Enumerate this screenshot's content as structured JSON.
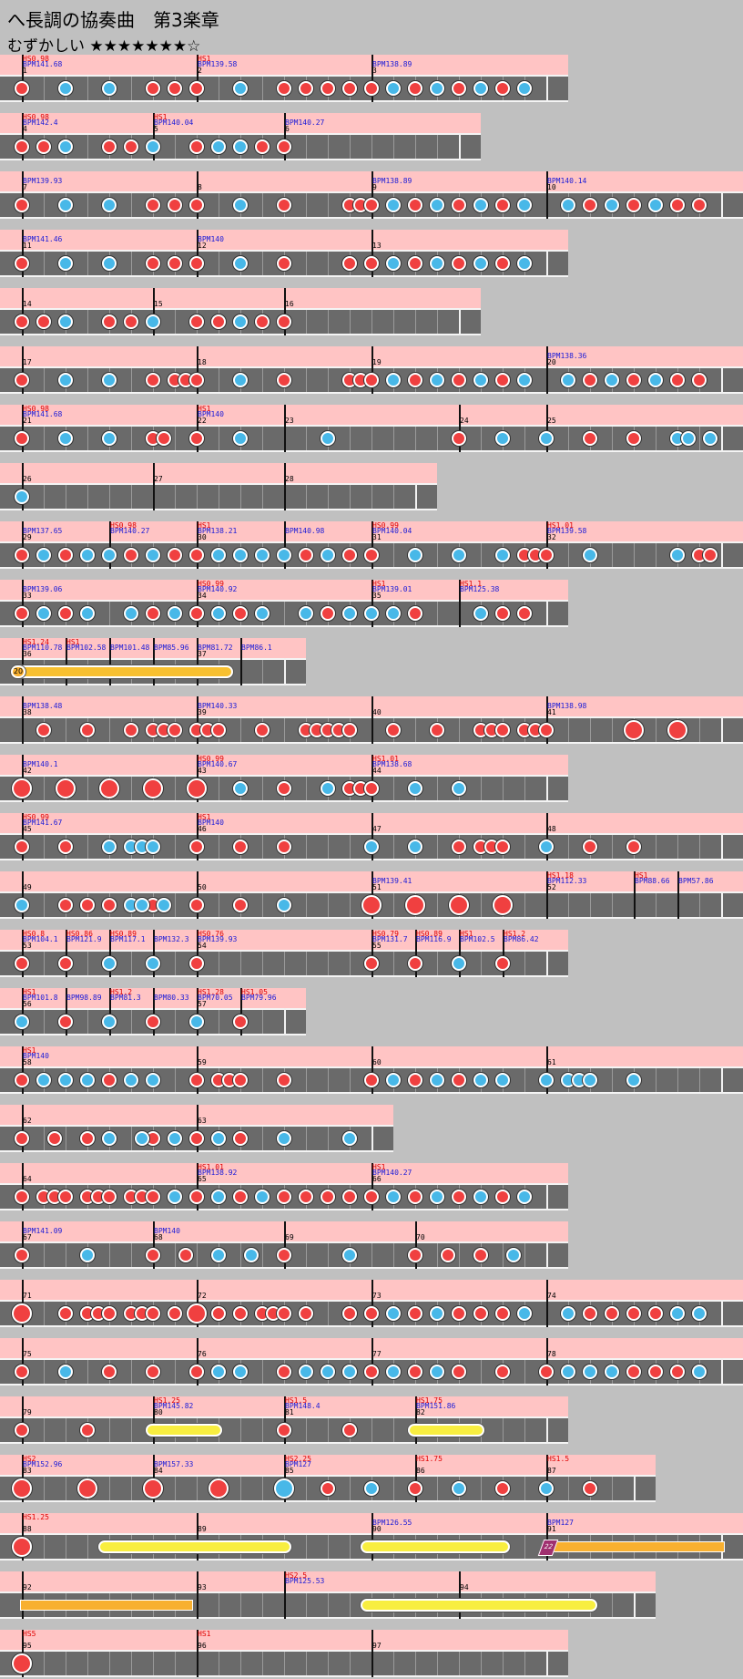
{
  "title": "へ長調の協奏曲　第3楽章",
  "difficulty": "むずかしい ★★★★★★★☆",
  "rows": [
    {
      "y": 60,
      "w": 624,
      "measures": [
        {
          "n": "1",
          "x": 24,
          "hs": "HS0.98",
          "bpm": "BPM141.68"
        },
        {
          "n": "2",
          "x": 216,
          "hs": "HS1",
          "bpm": "BPM139.58"
        },
        {
          "n": "3",
          "x": 408,
          "bpm": "BPM138.89"
        }
      ],
      "don": [
        24,
        168,
        192,
        216,
        312,
        336,
        360,
        384,
        408,
        456,
        504,
        552
      ],
      "ka": [
        72,
        120,
        264,
        432,
        480,
        528,
        576
      ]
    },
    {
      "y": 124,
      "w": 528,
      "measures": [
        {
          "n": "4",
          "x": 24,
          "hs": "HS0.98",
          "bpm": "BPM142.4"
        },
        {
          "n": "5",
          "x": 168,
          "hs": "HS1",
          "bpm": "BPM140.04"
        },
        {
          "n": "6",
          "x": 312,
          "bpm": "BPM140.27"
        }
      ],
      "don": [
        24,
        48,
        120,
        144,
        216,
        288,
        312
      ],
      "ka": [
        72,
        168,
        240,
        264
      ]
    },
    {
      "y": 188,
      "w": 816,
      "measures": [
        {
          "n": "7",
          "x": 24,
          "bpm": "BPM139.93"
        },
        {
          "n": "8",
          "x": 216
        },
        {
          "n": "9",
          "x": 408,
          "bpm": "BPM138.89"
        },
        {
          "n": "10",
          "x": 600,
          "bpm": "BPM140.14"
        }
      ],
      "don": [
        24,
        168,
        192,
        216,
        312,
        384,
        396,
        408,
        456,
        504,
        552,
        648,
        696,
        744,
        768
      ],
      "ka": [
        72,
        120,
        264,
        432,
        480,
        528,
        576,
        624,
        672,
        720
      ]
    },
    {
      "y": 252,
      "w": 624,
      "measures": [
        {
          "n": "11",
          "x": 24,
          "bpm": "BPM141.46"
        },
        {
          "n": "12",
          "x": 216,
          "bpm": "BPM140"
        },
        {
          "n": "13",
          "x": 408
        }
      ],
      "don": [
        24,
        168,
        192,
        216,
        312,
        384,
        408,
        456,
        504,
        552
      ],
      "ka": [
        72,
        120,
        264,
        432,
        480,
        528,
        576
      ]
    },
    {
      "y": 316,
      "w": 528,
      "measures": [
        {
          "n": "14",
          "x": 24
        },
        {
          "n": "15",
          "x": 168
        },
        {
          "n": "16",
          "x": 312
        }
      ],
      "don": [
        24,
        48,
        120,
        144,
        216,
        240,
        288,
        312
      ],
      "ka": [
        72,
        168,
        264
      ]
    },
    {
      "y": 380,
      "w": 816,
      "measures": [
        {
          "n": "17",
          "x": 24
        },
        {
          "n": "18",
          "x": 216
        },
        {
          "n": "19",
          "x": 408
        },
        {
          "n": "20",
          "x": 600,
          "bpm": "BPM138.36"
        }
      ],
      "don": [
        24,
        168,
        192,
        204,
        216,
        312,
        384,
        396,
        408,
        456,
        504,
        552,
        648,
        696,
        744,
        768
      ],
      "ka": [
        72,
        120,
        264,
        432,
        480,
        528,
        576,
        624,
        672,
        720
      ]
    },
    {
      "y": 444,
      "w": 816,
      "measures": [
        {
          "n": "21",
          "x": 24,
          "hs": "HS0.98",
          "bpm": "BPM141.68"
        },
        {
          "n": "22",
          "x": 216,
          "hs": "HS1",
          "bpm": "BPM140"
        },
        {
          "n": "23",
          "x": 312
        },
        {
          "n": "24",
          "x": 504
        },
        {
          "n": "25",
          "x": 600
        }
      ],
      "don": [
        24,
        168,
        180,
        216,
        504,
        648,
        696
      ],
      "ka": [
        72,
        120,
        264,
        360,
        552,
        600,
        744,
        756,
        780
      ]
    },
    {
      "y": 508,
      "w": 480,
      "measures": [
        {
          "n": "26",
          "x": 24
        },
        {
          "n": "27",
          "x": 168
        },
        {
          "n": "28",
          "x": 312
        }
      ],
      "don": [],
      "ka": [
        24
      ]
    },
    {
      "y": 572,
      "w": 816,
      "measures": [
        {
          "n": "29",
          "x": 24,
          "bpm": "BPM137.65"
        },
        {
          "n": "",
          "x": 120,
          "hs": "HS0.98",
          "bpm": "BPM140.27"
        },
        {
          "n": "30",
          "x": 216,
          "hs": "HS1",
          "bpm": "BPM138.21"
        },
        {
          "n": "",
          "x": 312,
          "bpm": "BPM140.98"
        },
        {
          "n": "31",
          "x": 408,
          "hs": "HS0.99",
          "bpm": "BPM140.04"
        },
        {
          "n": "32",
          "x": 600,
          "hs": "HS1.01",
          "bpm": "BPM139.58"
        }
      ],
      "don": [
        24,
        72,
        144,
        192,
        216,
        336,
        384,
        408,
        576,
        588,
        600,
        768,
        780
      ],
      "ka": [
        48,
        96,
        120,
        168,
        240,
        264,
        288,
        312,
        360,
        456,
        504,
        552,
        648,
        744
      ]
    },
    {
      "y": 636,
      "w": 624,
      "measures": [
        {
          "n": "33",
          "x": 24,
          "bpm": "BPM139.06"
        },
        {
          "n": "34",
          "x": 216,
          "hs": "HS0.99",
          "bpm": "BPM140.92"
        },
        {
          "n": "35",
          "x": 408,
          "hs": "HS1",
          "bpm": "BPM139.01"
        },
        {
          "n": "",
          "x": 504,
          "hs": "HS1.1",
          "bpm": "BPM125.38"
        }
      ],
      "don": [
        24,
        72,
        168,
        216,
        264,
        360,
        456,
        552,
        576
      ],
      "ka": [
        48,
        96,
        144,
        192,
        240,
        288,
        336,
        384,
        408,
        432,
        528
      ]
    },
    {
      "y": 700,
      "w": 336,
      "measures": [
        {
          "n": "36",
          "x": 24,
          "hs": "HS1.24",
          "bpm": "BPM110.78"
        },
        {
          "n": "",
          "x": 72,
          "hs": "HS1",
          "bpm": "BPM102.58"
        },
        {
          "n": "",
          "x": 120,
          "bpm": "BPM101.48"
        },
        {
          "n": "",
          "x": 168,
          "bpm": "BPM85.96"
        },
        {
          "n": "37",
          "x": 216,
          "bpm": "BPM81.72"
        },
        {
          "n": "",
          "x": 264,
          "bpm": "BPM86.1"
        }
      ],
      "don": [],
      "ka": [],
      "balloon": {
        "x": 16,
        "end": 256,
        "label": "20"
      }
    },
    {
      "y": 764,
      "w": 816,
      "measures": [
        {
          "n": "38",
          "x": 24,
          "bpm": "BPM138.48"
        },
        {
          "n": "39",
          "x": 216,
          "bpm": "BPM140.33"
        },
        {
          "n": "40",
          "x": 408
        },
        {
          "n": "41",
          "x": 600,
          "bpm": "BPM138.98"
        }
      ],
      "don": [
        48,
        96,
        144,
        168,
        180,
        192,
        216,
        228,
        240,
        288,
        336,
        348,
        360,
        372,
        384,
        432,
        480,
        528,
        540,
        552,
        576,
        588,
        600
      ],
      "ka": [],
      "big_don": [
        696,
        744
      ]
    },
    {
      "y": 828,
      "w": 624,
      "measures": [
        {
          "n": "42",
          "x": 24,
          "bpm": "BPM140.1"
        },
        {
          "n": "43",
          "x": 216,
          "hs": "HS0.99",
          "bpm": "BPM140.67"
        },
        {
          "n": "44",
          "x": 408,
          "hs": "HS1.01",
          "bpm": "BPM138.68"
        }
      ],
      "don": [
        312,
        384,
        396,
        408
      ],
      "ka": [
        264,
        360,
        456,
        504
      ],
      "big_don": [
        24,
        72,
        120,
        168,
        216
      ]
    },
    {
      "y": 892,
      "w": 816,
      "measures": [
        {
          "n": "45",
          "x": 24,
          "hs": "HS0.99",
          "bpm": "BPM141.67"
        },
        {
          "n": "46",
          "x": 216,
          "hs": "HS1",
          "bpm": "BPM140"
        },
        {
          "n": "47",
          "x": 408
        },
        {
          "n": "48",
          "x": 600
        }
      ],
      "don": [
        24,
        72,
        216,
        264,
        312,
        504,
        528,
        540,
        552,
        648,
        696
      ],
      "ka": [
        120,
        144,
        156,
        168,
        408,
        456,
        600
      ]
    },
    {
      "y": 956,
      "w": 816,
      "measures": [
        {
          "n": "49",
          "x": 24
        },
        {
          "n": "50",
          "x": 216
        },
        {
          "n": "51",
          "x": 408,
          "bpm": "BPM139.41"
        },
        {
          "n": "52",
          "x": 600,
          "hs": "HS1.18",
          "bpm": "BPM112.33"
        },
        {
          "n": "",
          "x": 696,
          "hs": "HS1",
          "bpm": "BPM88.66"
        },
        {
          "n": "",
          "x": 744,
          "bpm": "BPM57.86"
        }
      ],
      "don": [
        72,
        96,
        120,
        168,
        216,
        264
      ],
      "ka": [
        24,
        144,
        156,
        180,
        312
      ],
      "big_don": [
        408,
        456,
        504,
        552
      ]
    },
    {
      "y": 1020,
      "w": 624,
      "measures": [
        {
          "n": "53",
          "x": 24,
          "hs": "HS0.8",
          "bpm": "BPM104.1"
        },
        {
          "n": "",
          "x": 72,
          "hs": "HS0.86",
          "bpm": "BPM121.9"
        },
        {
          "n": "",
          "x": 120,
          "hs": "HS0.89",
          "bpm": "BPM117.1"
        },
        {
          "n": "",
          "x": 168,
          "bpm": "BPM132.3"
        },
        {
          "n": "54",
          "x": 216,
          "hs": "HS0.76",
          "bpm": "BPM139.93"
        },
        {
          "n": "55",
          "x": 408,
          "hs": "HS0.79",
          "bpm": "BPM131.7"
        },
        {
          "n": "",
          "x": 456,
          "hs": "HS0.89",
          "bpm": "BPM116.9"
        },
        {
          "n": "",
          "x": 504,
          "hs": "HS1",
          "bpm": "BPM102.5"
        },
        {
          "n": "",
          "x": 552,
          "hs": "HS1.2",
          "bpm": "BPM86.42"
        }
      ],
      "don": [
        24,
        72,
        216,
        408,
        456,
        552
      ],
      "ka": [
        120,
        168,
        504
      ]
    },
    {
      "y": 1084,
      "w": 336,
      "measures": [
        {
          "n": "56",
          "x": 24,
          "hs": "HS1",
          "bpm": "BPM101.8"
        },
        {
          "n": "",
          "x": 72,
          "bpm": "BPM98.89"
        },
        {
          "n": "",
          "x": 120,
          "hs": "HS1.2",
          "bpm": "BPM81.3"
        },
        {
          "n": "",
          "x": 168,
          "bpm": "BPM80.33"
        },
        {
          "n": "57",
          "x": 216,
          "hs": "HS1.28",
          "bpm": "BPM70.05"
        },
        {
          "n": "",
          "x": 264,
          "hs": "HS1.05",
          "bpm": "BPM79.96"
        }
      ],
      "don": [
        72,
        168,
        264
      ],
      "ka": [
        24,
        120,
        216
      ]
    },
    {
      "y": 1148,
      "w": 816,
      "measures": [
        {
          "n": "58",
          "x": 24,
          "hs": "HS1",
          "bpm": "BPM140"
        },
        {
          "n": "59",
          "x": 216
        },
        {
          "n": "60",
          "x": 408
        },
        {
          "n": "61",
          "x": 600
        }
      ],
      "don": [
        24,
        120,
        216,
        240,
        252,
        264,
        312,
        408,
        456,
        504
      ],
      "ka": [
        48,
        72,
        96,
        144,
        168,
        432,
        480,
        528,
        552,
        600,
        624,
        636,
        648,
        696
      ]
    },
    {
      "y": 1212,
      "w": 432,
      "measures": [
        {
          "n": "62",
          "x": 24
        },
        {
          "n": "63",
          "x": 216
        }
      ],
      "don": [
        24,
        60,
        96,
        168,
        216,
        264
      ],
      "ka": [
        120,
        156,
        192,
        240,
        312,
        384
      ]
    },
    {
      "y": 1276,
      "w": 624,
      "measures": [
        {
          "n": "64",
          "x": 24
        },
        {
          "n": "65",
          "x": 216,
          "hs": "HS1.01",
          "bpm": "BPM138.92"
        },
        {
          "n": "66",
          "x": 408,
          "hs": "HS1",
          "bpm": "BPM140.27"
        }
      ],
      "don": [
        24,
        48,
        60,
        72,
        96,
        108,
        120,
        144,
        156,
        168,
        216,
        264,
        312,
        336,
        360,
        384,
        408,
        456,
        504,
        552
      ],
      "ka": [
        192,
        240,
        288,
        432,
        480,
        528,
        576
      ]
    },
    {
      "y": 1340,
      "w": 624,
      "measures": [
        {
          "n": "67",
          "x": 24,
          "bpm": "BPM141.09"
        },
        {
          "n": "68",
          "x": 168,
          "bpm": "BPM140"
        },
        {
          "n": "69",
          "x": 312
        },
        {
          "n": "70",
          "x": 456
        }
      ],
      "don": [
        24,
        168,
        204,
        312,
        456,
        492,
        528
      ],
      "ka": [
        96,
        240,
        276,
        384,
        564
      ]
    },
    {
      "y": 1404,
      "w": 816,
      "measures": [
        {
          "n": "71",
          "x": 24
        },
        {
          "n": "72",
          "x": 216
        },
        {
          "n": "73",
          "x": 408
        },
        {
          "n": "74",
          "x": 600
        }
      ],
      "don": [
        72,
        96,
        108,
        120,
        144,
        156,
        168,
        192,
        240,
        264,
        288,
        300,
        312,
        336,
        384,
        408,
        456,
        504,
        528,
        552,
        648,
        672,
        696,
        720
      ],
      "ka": [
        432,
        480,
        576,
        624,
        744,
        768
      ],
      "big_don": [
        24,
        216
      ]
    },
    {
      "y": 1468,
      "w": 816,
      "measures": [
        {
          "n": "75",
          "x": 24
        },
        {
          "n": "76",
          "x": 216
        },
        {
          "n": "77",
          "x": 408
        },
        {
          "n": "78",
          "x": 600
        }
      ],
      "don": [
        24,
        120,
        168,
        216,
        264,
        312,
        408,
        456,
        504,
        552,
        600,
        696,
        720,
        744
      ],
      "ka": [
        72,
        240,
        264,
        336,
        360,
        384,
        432,
        480,
        624,
        648,
        672,
        768
      ]
    },
    {
      "y": 1532,
      "w": 624,
      "measures": [
        {
          "n": "79",
          "x": 24
        },
        {
          "n": "80",
          "x": 168,
          "hs": "HS1.25",
          "bpm": "BPM145.82"
        },
        {
          "n": "81",
          "x": 312,
          "hs": "HS1.5",
          "bpm": "BPM148.4"
        },
        {
          "n": "82",
          "x": 456,
          "hs": "HS1.75",
          "bpm": "BPM151.86"
        }
      ],
      "don": [
        24,
        96,
        312,
        384
      ],
      "ka": [],
      "rolls": [
        [
          160,
          244
        ],
        [
          448,
          532
        ]
      ]
    },
    {
      "y": 1596,
      "w": 720,
      "measures": [
        {
          "n": "83",
          "x": 24,
          "hs": "HS2",
          "bpm": "BPM152.96"
        },
        {
          "n": "84",
          "x": 168,
          "bpm": "BPM157.33"
        },
        {
          "n": "85",
          "x": 312,
          "hs": "HS2.25",
          "bpm": "BPM127"
        },
        {
          "n": "86",
          "x": 456,
          "hs": "HS1.75"
        },
        {
          "n": "87",
          "x": 600,
          "hs": "HS1.5"
        }
      ],
      "don": [
        360,
        456,
        552,
        648
      ],
      "ka": [
        408,
        504,
        600
      ],
      "big_don": [
        24,
        96,
        168,
        240
      ],
      "big_ka": [
        312
      ]
    },
    {
      "y": 1660,
      "w": 816,
      "measures": [
        {
          "n": "88",
          "x": 24,
          "hs": "HS1.25"
        },
        {
          "n": "89",
          "x": 216
        },
        {
          "n": "90",
          "x": 408,
          "bpm": "BPM126.55"
        },
        {
          "n": "91",
          "x": 600,
          "bpm": "BPM127"
        }
      ],
      "don": [],
      "ka": [],
      "big_don": [
        24
      ],
      "rolls": [
        [
          108,
          320
        ],
        [
          396,
          560
        ]
      ],
      "oroll": {
        "x": 600,
        "end": 796,
        "label": "22"
      }
    },
    {
      "y": 1724,
      "w": 720,
      "measures": [
        {
          "n": "92",
          "x": 24
        },
        {
          "n": "93",
          "x": 216
        },
        {
          "n": "",
          "x": 312,
          "hs": "HS2.5",
          "bpm": "BPM125.53"
        },
        {
          "n": "94",
          "x": 504
        }
      ],
      "don": [],
      "ka": [],
      "orolls": [
        [
          22,
          212
        ]
      ],
      "rolls": [
        [
          396,
          656
        ]
      ]
    },
    {
      "y": 1788,
      "w": 624,
      "measures": [
        {
          "n": "95",
          "x": 24,
          "hs": "HS5"
        },
        {
          "n": "96",
          "x": 216,
          "hs": "HS1"
        },
        {
          "n": "97",
          "x": 408
        }
      ],
      "don": [],
      "ka": [],
      "big_don": [
        24
      ]
    }
  ],
  "note_colors": {
    "don": "#f04040",
    "ka": "#48b8e8",
    "roll": "#f8ee40",
    "balloon": "#f8b030",
    "header": "#ffc4c4",
    "lane": "#6a6a6a"
  }
}
